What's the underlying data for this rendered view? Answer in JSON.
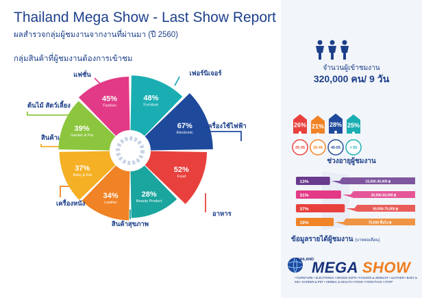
{
  "report": {
    "title": "Thailand Mega Show - Last Show Report",
    "subtitle": "ผลสำรวจกลุ่มผู้ชมงานจากงานที่ผ่านมา (ปี 2560)",
    "chart_heading": "กลุ่มสินค้าที่ผู้ชมงานต้องการเข้าชม"
  },
  "chart_data": [
    {
      "type": "pie",
      "title": "กลุ่มสินค้าที่ผู้ชมงานต้องการเข้าชม",
      "slices": [
        {
          "category": "เฟอร์นิเจอร์",
          "label_en": "Furniture",
          "value": 48,
          "display": "48%",
          "color": "#1aaeb2"
        },
        {
          "category": "เครื่องใช้ไฟฟ้า",
          "label_en": "Electronic",
          "value": 67,
          "display": "67%",
          "color": "#1f4a9c"
        },
        {
          "category": "อาหาร",
          "label_en": "Food",
          "value": 52,
          "display": "52%",
          "color": "#e8413d"
        },
        {
          "category": "สินค้าสุขภาพ",
          "label_en": "Beauty Product",
          "value": 28,
          "display": "28%",
          "color": "#1aa59e"
        },
        {
          "category": "เครื่องหนัง",
          "label_en": "Leather",
          "value": 34,
          "display": "34%",
          "color": "#f08326"
        },
        {
          "category": "สินค้าเด็ก",
          "label_en": "Baby & Kid",
          "value": 37,
          "display": "37%",
          "color": "#f5b025"
        },
        {
          "category": "ต้นไม้ สัตว์เลี้ยง",
          "label_en": "Garden & Pet",
          "value": 39,
          "display": "39%",
          "color": "#8cc63f"
        },
        {
          "category": "แฟชั่น",
          "label_en": "Fashion",
          "value": 45,
          "display": "45%",
          "color": "#e23a86"
        }
      ]
    },
    {
      "type": "bar",
      "title": "ช่วงอายุผู้ชมงาน",
      "categories": [
        "25-35",
        "35-45",
        "45-55",
        "> 55"
      ],
      "values": [
        26,
        21,
        28,
        25
      ],
      "labels": [
        "26%",
        "21%",
        "28%",
        "25%"
      ],
      "colors": [
        "#e8413d",
        "#f08326",
        "#1f4a9c",
        "#1aaeb2"
      ]
    },
    {
      "type": "bar",
      "title": "ข้อมูลรายได้ผู้ชมงาน",
      "note": "(บาทต่อเดือน)",
      "categories": [
        "15,000-30,000 ฿",
        "30,000-50,000 ฿",
        "50,000-75,000 ฿",
        "75,000 ขึ้นไป ฿"
      ],
      "values": [
        13,
        31,
        37,
        19
      ],
      "labels": [
        "13%",
        "31%",
        "37%",
        "19%"
      ],
      "colors": [
        "#6a3a8e",
        "#e23a86",
        "#e8413d",
        "#f08326"
      ]
    }
  ],
  "visitors": {
    "label": "จำนวนผู้เข้าชมงาน",
    "value": "320,000 คน/ 9 วัน",
    "icon": "people-icon"
  },
  "logo": {
    "small": "THAILAND",
    "mega": "MEGA",
    "show": "SHOW",
    "tagline": "• FURNITURE • ELECTRONIC • DESIGN EXPO • FASHION & JEWELRY • LEATHER • BABY & KID • GARDEN & PET • HERBAL & HEALTH • FOOD • FOOD PACK • OTOP"
  }
}
